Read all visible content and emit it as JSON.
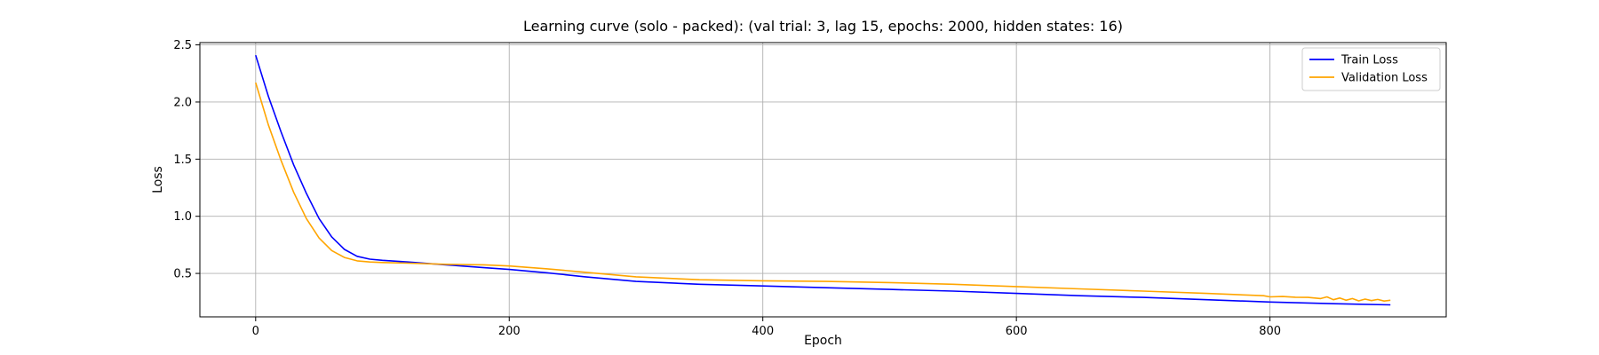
{
  "chart_data": {
    "type": "line",
    "title": "Learning curve (solo - packed): (val trial: 3, lag 15, epochs: 2000, hidden states: 16)",
    "xlabel": "Epoch",
    "ylabel": "Loss",
    "xlim": [
      -44,
      939
    ],
    "ylim": [
      0.12,
      2.52
    ],
    "xticks": [
      0,
      200,
      400,
      600,
      800
    ],
    "yticks": [
      0.5,
      1.0,
      1.5,
      2.0,
      2.5
    ],
    "ytick_labels": [
      "0.5",
      "1.0",
      "1.5",
      "2.0",
      "2.5"
    ],
    "grid": true,
    "legend_position": "top-right",
    "series": [
      {
        "name": "Train Loss",
        "color": "#0000ff",
        "x": [
          0,
          10,
          20,
          30,
          40,
          50,
          60,
          70,
          80,
          90,
          100,
          120,
          150,
          180,
          200,
          230,
          260,
          300,
          350,
          400,
          450,
          500,
          550,
          600,
          650,
          700,
          750,
          800,
          850,
          895
        ],
        "y": [
          2.41,
          2.05,
          1.74,
          1.45,
          1.2,
          0.98,
          0.82,
          0.71,
          0.65,
          0.625,
          0.615,
          0.6,
          0.575,
          0.55,
          0.535,
          0.505,
          0.47,
          0.43,
          0.405,
          0.39,
          0.375,
          0.36,
          0.345,
          0.325,
          0.305,
          0.29,
          0.27,
          0.25,
          0.235,
          0.225
        ]
      },
      {
        "name": "Validation Loss",
        "color": "#ffa500",
        "x": [
          0,
          10,
          20,
          30,
          40,
          50,
          60,
          70,
          80,
          90,
          100,
          120,
          150,
          180,
          200,
          230,
          260,
          300,
          350,
          400,
          450,
          500,
          550,
          600,
          650,
          700,
          750,
          795,
          800,
          810,
          820,
          830,
          840,
          845,
          850,
          855,
          860,
          865,
          870,
          875,
          880,
          885,
          890,
          895
        ],
        "y": [
          2.17,
          1.8,
          1.49,
          1.21,
          0.98,
          0.81,
          0.7,
          0.64,
          0.61,
          0.6,
          0.595,
          0.59,
          0.58,
          0.575,
          0.565,
          0.54,
          0.51,
          0.47,
          0.445,
          0.435,
          0.43,
          0.42,
          0.405,
          0.385,
          0.365,
          0.345,
          0.325,
          0.305,
          0.295,
          0.298,
          0.292,
          0.29,
          0.28,
          0.295,
          0.27,
          0.285,
          0.265,
          0.28,
          0.26,
          0.275,
          0.262,
          0.272,
          0.258,
          0.265
        ]
      }
    ]
  }
}
